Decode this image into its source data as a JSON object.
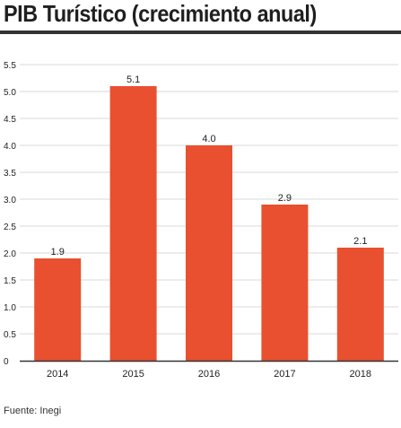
{
  "title": "PIB Turístico (crecimiento anual)",
  "source": "Fuente: Inegi",
  "colors": {
    "bar": "#e8502f",
    "grid": "#d9d9d9",
    "axis": "#333333",
    "text": "#222222"
  },
  "chart_data": {
    "type": "bar",
    "title": "PIB Turístico (crecimiento anual)",
    "categories": [
      "2014",
      "2015",
      "2016",
      "2017",
      "2018"
    ],
    "values": [
      1.9,
      5.1,
      4.0,
      2.9,
      2.1
    ],
    "data_labels": [
      "1.9",
      "5.1",
      "4.0",
      "2.9",
      "2.1"
    ],
    "yticks": [
      "0",
      "0.5",
      "1.0",
      "1.5",
      "2.0",
      "2.5",
      "3.0",
      "3.5",
      "4.0",
      "4.5",
      "5.0",
      "5.5"
    ],
    "ylim": [
      0,
      5.5
    ],
    "xlabel": "",
    "ylabel": "",
    "grid": true,
    "legend": "none"
  }
}
